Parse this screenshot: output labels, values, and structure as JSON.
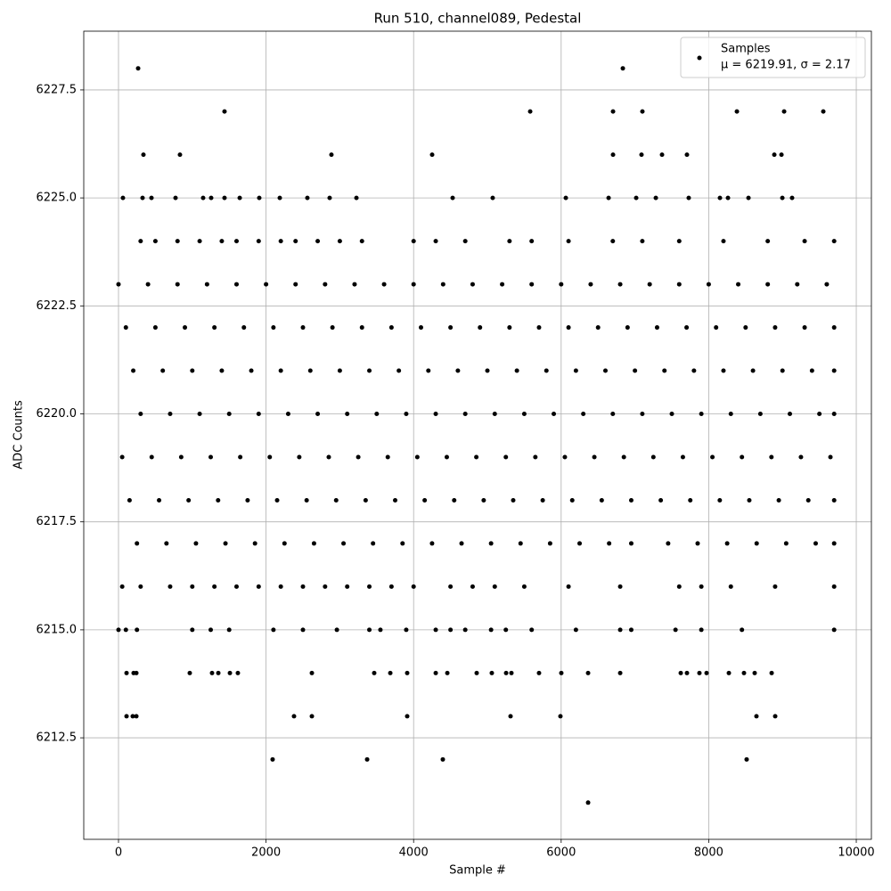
{
  "chart_data": {
    "type": "scatter",
    "title": "Run 510, channel089, Pedestal",
    "xlabel": "Sample #",
    "ylabel": "ADC Counts",
    "xlim": [
      -471,
      10205
    ],
    "ylim": [
      6210.15,
      6228.86
    ],
    "xticks": [
      0,
      2000,
      4000,
      6000,
      8000,
      10000
    ],
    "yticks": [
      6212.5,
      {
        "value": 6215,
        "label": "6215.0"
      },
      6217.5,
      {
        "value": 6220,
        "label": "6220.0"
      },
      6222.5,
      {
        "value": 6225,
        "label": "6225.0"
      },
      6227.5
    ],
    "grid": true,
    "legend_position": "upper right",
    "legend_note": "μ = 6219.91, σ = 2.17",
    "x": [
      0,
      400,
      800,
      1200,
      1600,
      2000,
      2400,
      2800,
      3200,
      3600,
      4000,
      4400,
      4800,
      5200,
      5600,
      6000,
      6400,
      6800,
      7200,
      7600,
      8000,
      8400,
      8800,
      9200,
      9600,
      100,
      500,
      900,
      1300,
      1700,
      2100,
      2500,
      2900,
      3300,
      3700,
      4100,
      4500,
      4900,
      5300,
      5700,
      6100,
      6500,
      6900,
      7300,
      7700,
      8100,
      8500,
      8900,
      9300,
      9700,
      200,
      600,
      1000,
      1400,
      1800,
      2200,
      2600,
      3000,
      3400,
      3800,
      4200,
      4600,
      5000,
      5400,
      5800,
      6200,
      6600,
      7000,
      7400,
      7800,
      8200,
      8600,
      9000,
      9400,
      9700,
      300,
      700,
      1100,
      1500,
      1900,
      2300,
      2700,
      3100,
      3500,
      3900,
      4300,
      4700,
      5100,
      5500,
      5900,
      6300,
      6700,
      7100,
      7500,
      7900,
      8300,
      8700,
      9100,
      9500,
      9700,
      50,
      450,
      850,
      1250,
      1650,
      2050,
      2450,
      2850,
      3250,
      3650,
      4050,
      4450,
      4850,
      5250,
      5650,
      6050,
      6450,
      6850,
      7250,
      7650,
      8050,
      8450,
      8850,
      9250,
      9650,
      150,
      550,
      950,
      1350,
      1750,
      2150,
      2550,
      2950,
      3350,
      3750,
      4150,
      4550,
      4950,
      5350,
      5750,
      6150,
      6550,
      6950,
      7350,
      7750,
      8150,
      8550,
      8950,
      9350,
      9700,
      250,
      650,
      1050,
      1450,
      1850,
      2250,
      2650,
      3050,
      3450,
      3850,
      4250,
      4650,
      5050,
      5450,
      5850,
      6250,
      6650,
      6950,
      7450,
      7850,
      8250,
      8650,
      9050,
      9450,
      9700,
      266,
      6836,
      1437,
      5580,
      6703,
      7101,
      8382,
      9022,
      9553,
      338,
      833,
      2886,
      4251,
      6703,
      7089,
      7367,
      7705,
      8889,
      8986,
      60,
      326,
      447,
      773,
      1147,
      1256,
      1437,
      1643,
      1908,
      2186,
      2560,
      2862,
      3225,
      4529,
      5072,
      6063,
      6643,
      7017,
      7283,
      7729,
      8152,
      8261,
      8539,
      8998,
      9130,
      300,
      500,
      800,
      1100,
      1400,
      1600,
      1900,
      2200,
      2400,
      2700,
      3000,
      3300,
      4000,
      4300,
      4700,
      5300,
      5600,
      6100,
      6700,
      7100,
      7600,
      8200,
      8800,
      9300,
      9700,
      50,
      300,
      700,
      1000,
      1300,
      1600,
      1900,
      2200,
      2500,
      2800,
      3100,
      3400,
      3700,
      4000,
      4500,
      4800,
      5100,
      5500,
      6100,
      6800,
      7600,
      7900,
      8300,
      8900,
      9700,
      0,
      100,
      250,
      1000,
      1250,
      1500,
      2100,
      2500,
      2960,
      3400,
      3550,
      3900,
      4300,
      4500,
      4700,
      5050,
      5250,
      5600,
      6200,
      6800,
      6950,
      7550,
      7900,
      8450,
      9700,
      109,
      205,
      242,
      966,
      1268,
      1353,
      1510,
      1618,
      2621,
      3466,
      3684,
      3913,
      4300,
      4457,
      4855,
      5060,
      5254,
      5326,
      5700,
      6002,
      6365,
      6800,
      7621,
      7705,
      7874,
      7971,
      8273,
      8478,
      8623,
      8853,
      109,
      193,
      242,
      2379,
      2621,
      3913,
      5314,
      5990,
      8647,
      8901,
      2089,
      3370,
      4396,
      8514,
      6365
    ],
    "series": [
      {
        "name": "Samples",
        "color": "#000000",
        "values": [
          6223,
          6223,
          6223,
          6223,
          6223,
          6223,
          6223,
          6223,
          6223,
          6223,
          6223,
          6223,
          6223,
          6223,
          6223,
          6223,
          6223,
          6223,
          6223,
          6223,
          6223,
          6223,
          6223,
          6223,
          6223,
          6222,
          6222,
          6222,
          6222,
          6222,
          6222,
          6222,
          6222,
          6222,
          6222,
          6222,
          6222,
          6222,
          6222,
          6222,
          6222,
          6222,
          6222,
          6222,
          6222,
          6222,
          6222,
          6222,
          6222,
          6222,
          6221,
          6221,
          6221,
          6221,
          6221,
          6221,
          6221,
          6221,
          6221,
          6221,
          6221,
          6221,
          6221,
          6221,
          6221,
          6221,
          6221,
          6221,
          6221,
          6221,
          6221,
          6221,
          6221,
          6221,
          6221,
          6220,
          6220,
          6220,
          6220,
          6220,
          6220,
          6220,
          6220,
          6220,
          6220,
          6220,
          6220,
          6220,
          6220,
          6220,
          6220,
          6220,
          6220,
          6220,
          6220,
          6220,
          6220,
          6220,
          6220,
          6220,
          6219,
          6219,
          6219,
          6219,
          6219,
          6219,
          6219,
          6219,
          6219,
          6219,
          6219,
          6219,
          6219,
          6219,
          6219,
          6219,
          6219,
          6219,
          6219,
          6219,
          6219,
          6219,
          6219,
          6219,
          6219,
          6218,
          6218,
          6218,
          6218,
          6218,
          6218,
          6218,
          6218,
          6218,
          6218,
          6218,
          6218,
          6218,
          6218,
          6218,
          6218,
          6218,
          6218,
          6218,
          6218,
          6218,
          6218,
          6218,
          6218,
          6218,
          6217,
          6217,
          6217,
          6217,
          6217,
          6217,
          6217,
          6217,
          6217,
          6217,
          6217,
          6217,
          6217,
          6217,
          6217,
          6217,
          6217,
          6217,
          6217,
          6217,
          6217,
          6217,
          6217,
          6217,
          6217,
          6228,
          6228,
          6227,
          6227,
          6227,
          6227,
          6227,
          6227,
          6227,
          6226,
          6226,
          6226,
          6226,
          6226,
          6226,
          6226,
          6226,
          6226,
          6226,
          6225,
          6225,
          6225,
          6225,
          6225,
          6225,
          6225,
          6225,
          6225,
          6225,
          6225,
          6225,
          6225,
          6225,
          6225,
          6225,
          6225,
          6225,
          6225,
          6225,
          6225,
          6225,
          6225,
          6225,
          6225,
          6224,
          6224,
          6224,
          6224,
          6224,
          6224,
          6224,
          6224,
          6224,
          6224,
          6224,
          6224,
          6224,
          6224,
          6224,
          6224,
          6224,
          6224,
          6224,
          6224,
          6224,
          6224,
          6224,
          6224,
          6224,
          6216,
          6216,
          6216,
          6216,
          6216,
          6216,
          6216,
          6216,
          6216,
          6216,
          6216,
          6216,
          6216,
          6216,
          6216,
          6216,
          6216,
          6216,
          6216,
          6216,
          6216,
          6216,
          6216,
          6216,
          6216,
          6215,
          6215,
          6215,
          6215,
          6215,
          6215,
          6215,
          6215,
          6215,
          6215,
          6215,
          6215,
          6215,
          6215,
          6215,
          6215,
          6215,
          6215,
          6215,
          6215,
          6215,
          6215,
          6215,
          6215,
          6215,
          6214,
          6214,
          6214,
          6214,
          6214,
          6214,
          6214,
          6214,
          6214,
          6214,
          6214,
          6214,
          6214,
          6214,
          6214,
          6214,
          6214,
          6214,
          6214,
          6214,
          6214,
          6214,
          6214,
          6214,
          6214,
          6214,
          6214,
          6214,
          6214,
          6214,
          6213,
          6213,
          6213,
          6213,
          6213,
          6213,
          6213,
          6213,
          6213,
          6213,
          6212,
          6212,
          6212,
          6212,
          6211
        ]
      }
    ]
  }
}
